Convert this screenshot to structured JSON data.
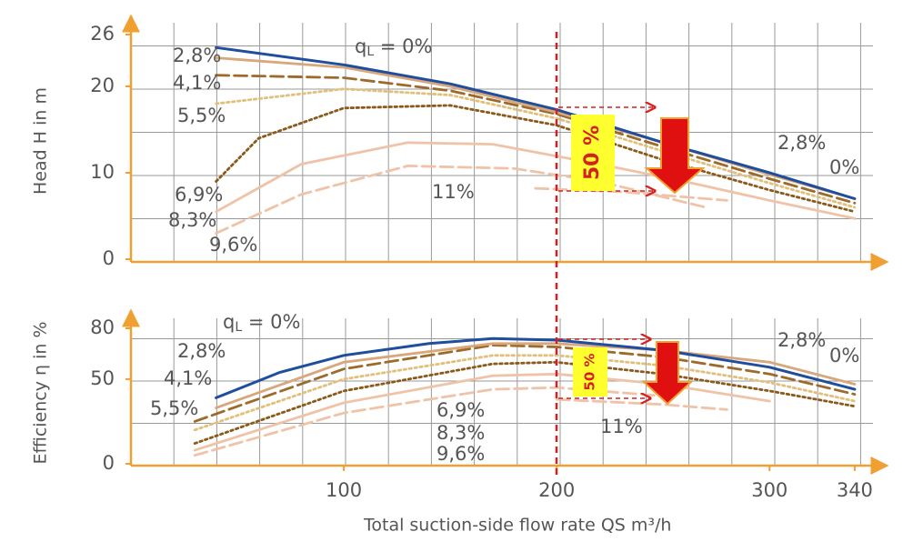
{
  "chart_data": [
    {
      "type": "line",
      "ylabel": "Head H in m",
      "xlim": [
        0,
        355
      ],
      "ylim": [
        0,
        26
      ],
      "yticks": [
        0,
        10,
        20,
        26
      ],
      "series": [
        {
          "name": "0%",
          "color": "#1f4e9c",
          "style": "solid",
          "x": [
            40,
            100,
            150,
            200,
            250,
            300,
            340
          ],
          "values": [
            24.5,
            22.5,
            20.3,
            17.3,
            13.5,
            10,
            7
          ]
        },
        {
          "name": "2,8%",
          "color": "#d9a77c",
          "style": "solid",
          "x": [
            40,
            100,
            150,
            200,
            250,
            300,
            340
          ],
          "values": [
            23.3,
            22.2,
            20,
            17,
            13.5,
            9.8,
            7
          ]
        },
        {
          "name": "4,1%",
          "color": "#9c6a2a",
          "style": "dashed",
          "x": [
            40,
            100,
            150,
            200,
            250,
            300,
            340
          ],
          "values": [
            21.3,
            21,
            19.5,
            16.8,
            13,
            9.3,
            6.5
          ]
        },
        {
          "name": "5,5%",
          "color": "#e0c07a",
          "style": "dotted",
          "x": [
            40,
            100,
            150,
            200,
            250,
            300,
            340
          ],
          "values": [
            18,
            19.7,
            19,
            16.3,
            12.5,
            8.8,
            6
          ]
        },
        {
          "name": "6,9%",
          "color": "#8a5a1a",
          "style": "dotted",
          "x": [
            40,
            60,
            100,
            150,
            200,
            250,
            300,
            340
          ],
          "values": [
            9,
            14,
            17.5,
            17.8,
            15.5,
            11.5,
            8,
            5.5
          ]
        },
        {
          "name": "8,3%",
          "color": "#efc3a7",
          "style": "solid",
          "x": [
            40,
            80,
            130,
            170,
            220,
            260,
            300,
            340
          ],
          "values": [
            5.5,
            11,
            13.5,
            13.3,
            11,
            9,
            6.8,
            4.7
          ]
        },
        {
          "name": "9,6%",
          "color": "#efc3a7",
          "style": "dashed",
          "x": [
            40,
            80,
            130,
            180,
            220,
            270
          ],
          "values": [
            3,
            7.5,
            10.8,
            10.5,
            9,
            6
          ]
        },
        {
          "name": "11%",
          "color": "#efc3a7",
          "style": "dashed",
          "x": [
            190,
            230,
            280
          ],
          "values": [
            8.2,
            7.8,
            6.8
          ]
        }
      ],
      "annotations": {
        "right_label": "2,8%",
        "ql_parts": [
          "q",
          "L",
          " = 0%"
        ],
        "reduction": "50 %"
      }
    },
    {
      "type": "line",
      "ylabel": "Efficiency η in %",
      "xlabel": "Total suction-side flow rate QS m³/h",
      "xlim": [
        0,
        355
      ],
      "xticks": [
        100,
        200,
        300,
        340
      ],
      "ylim": [
        0,
        80
      ],
      "yticks": [
        0,
        50,
        80
      ],
      "series": [
        {
          "name": "0%",
          "color": "#1f4e9c",
          "style": "solid",
          "x": [
            40,
            70,
            100,
            140,
            170,
            200,
            250,
            300,
            340
          ],
          "values": [
            39,
            54,
            64,
            71,
            74,
            73,
            67,
            57,
            44
          ]
        },
        {
          "name": "2,8%",
          "color": "#d9a77c",
          "style": "solid",
          "x": [
            40,
            100,
            170,
            200,
            250,
            300,
            340
          ],
          "values": [
            33,
            60,
            71,
            71,
            67,
            60,
            47
          ]
        },
        {
          "name": "4,1%",
          "color": "#9c6a2a",
          "style": "dashed",
          "x": [
            30,
            100,
            170,
            200,
            250,
            300,
            340
          ],
          "values": [
            25,
            56,
            70,
            69,
            63,
            53,
            41
          ]
        },
        {
          "name": "5,5%",
          "color": "#e0c07a",
          "style": "dotted",
          "x": [
            30,
            100,
            170,
            200,
            250,
            300,
            340
          ],
          "values": [
            20,
            50,
            64,
            64,
            58,
            48,
            37
          ]
        },
        {
          "name": "6,9%",
          "color": "#8a5a1a",
          "style": "dotted",
          "x": [
            30,
            100,
            170,
            200,
            250,
            300,
            340
          ],
          "values": [
            12,
            43,
            59,
            60,
            53,
            43,
            34
          ]
        },
        {
          "name": "8,3%",
          "color": "#efc3a7",
          "style": "solid",
          "x": [
            30,
            100,
            170,
            200,
            250,
            300
          ],
          "values": [
            8,
            36,
            52,
            53,
            47,
            37
          ]
        },
        {
          "name": "9,6%",
          "color": "#efc3a7",
          "style": "dashed",
          "x": [
            30,
            100,
            170,
            200,
            250
          ],
          "values": [
            5,
            30,
            44,
            45,
            40
          ]
        },
        {
          "name": "11%",
          "color": "#efc3a7",
          "style": "dashed",
          "x": [
            200,
            250,
            280
          ],
          "values": [
            38,
            35,
            32
          ]
        }
      ],
      "annotations": {
        "right_label": "2,8%",
        "ql_parts": [
          "q",
          "L",
          " = 0%"
        ],
        "reduction": "50 %"
      }
    }
  ]
}
